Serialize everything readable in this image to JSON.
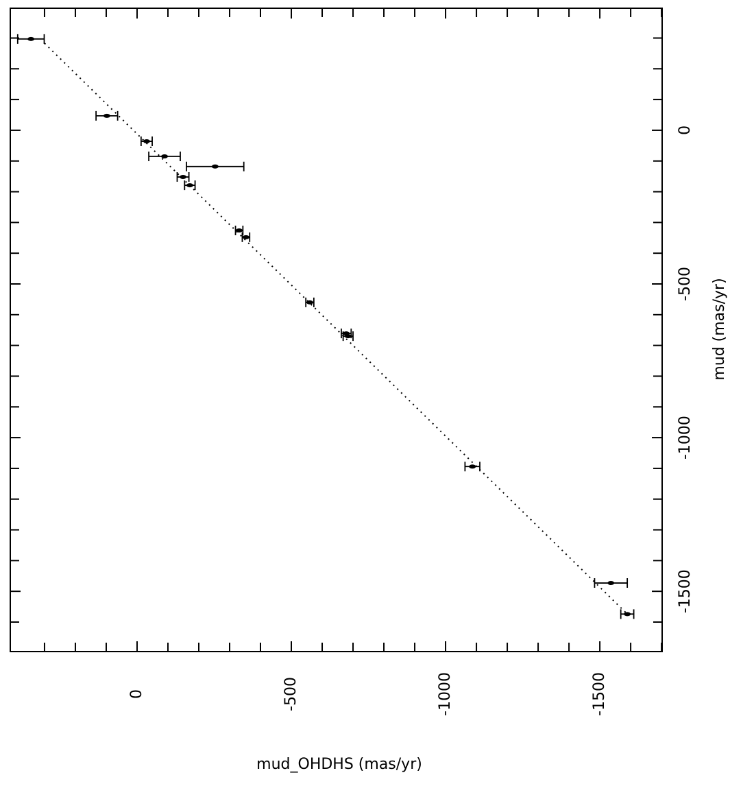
{
  "chart_data": {
    "type": "scatter",
    "xlabel": "mud_OHDHS (mas/yr)",
    "ylabel": "mud (mas/yr)",
    "xlim": [
      411,
      -1702
    ],
    "ylim": [
      397,
      -1696
    ],
    "xticks": [
      0,
      -500,
      -1000,
      -1500
    ],
    "yticks": [
      0,
      -500,
      -1000,
      -1500
    ],
    "xticks_minor": [
      300,
      200,
      100,
      -100,
      -200,
      -300,
      -400,
      -600,
      -700,
      -800,
      -900,
      -1100,
      -1200,
      -1300,
      -1400,
      -1600,
      -1700
    ],
    "yticks_minor": [
      300,
      200,
      100,
      -100,
      -200,
      -300,
      -400,
      -600,
      -700,
      -800,
      -900,
      -1100,
      -1200,
      -1300,
      -1400,
      -1600
    ],
    "series": [
      {
        "color": "#000000",
        "x": [
          344,
          98,
          -31,
          -89,
          -253,
          -149,
          -171,
          -331,
          -353,
          -560,
          -678,
          -684,
          -1087,
          -1536,
          -1589
        ],
        "values": [
          297,
          47,
          -36,
          -85,
          -118,
          -152,
          -179,
          -326,
          -348,
          -560,
          -661,
          -670,
          -1094,
          -1473,
          -1574
        ],
        "xerr": [
          43,
          35,
          18,
          51,
          93,
          19,
          17,
          12,
          12,
          13,
          16,
          16,
          24,
          53,
          21
        ]
      },
      {
        "color": "#000000",
        "style": "dotted",
        "x": [
          300,
          -1589
        ],
        "values": [
          283,
          -1574
        ]
      }
    ]
  }
}
